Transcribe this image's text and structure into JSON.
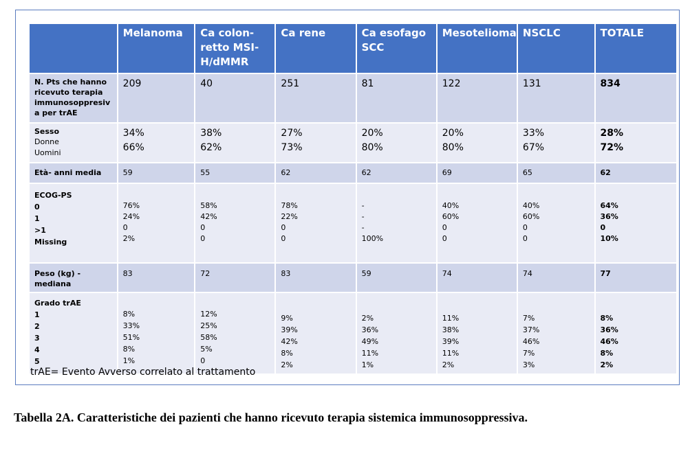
{
  "columns": [
    "",
    "Melanoma",
    "Ca colon-retto  MSI-H/dMMR",
    "Ca rene",
    "Ca esofago SCC",
    "Mesotelioma",
    "NSCLC",
    "TOTALE"
  ],
  "header_lines": {
    "c2": [
      "Ca colon-",
      "retto  MSI-",
      "H/dMMR"
    ],
    "c4": [
      "Ca esofago",
      "SCC"
    ]
  },
  "rows": {
    "npts": {
      "label": [
        "N. Pts che hanno",
        "ricevuto terapia",
        "immunosoppresiv",
        "a per trAE"
      ],
      "values": [
        "209",
        "40",
        "251",
        "81",
        "122",
        "131",
        "834"
      ]
    },
    "sesso": {
      "label": "Sesso",
      "sub": [
        "Donne",
        "Uomini"
      ],
      "values": [
        [
          "34%",
          "66%"
        ],
        [
          "38%",
          "62%"
        ],
        [
          "27%",
          "73%"
        ],
        [
          "20%",
          "80%"
        ],
        [
          "20%",
          "80%"
        ],
        [
          "33%",
          "67%"
        ],
        [
          "28%",
          "72%"
        ]
      ]
    },
    "eta": {
      "label": "Età- anni media",
      "values": [
        "59",
        "55",
        "62",
        "62",
        "69",
        "65",
        "62"
      ]
    },
    "ecog": {
      "label": [
        "ECOG-PS",
        "0",
        "1",
        ">1",
        "Missing"
      ],
      "values": [
        [
          "76%",
          "24%",
          "0",
          "2%"
        ],
        [
          "58%",
          "42%",
          "0",
          "0"
        ],
        [
          "78%",
          "22%",
          "0",
          "0"
        ],
        [
          "-",
          "-",
          "-",
          "100%"
        ],
        [
          "40%",
          "60%",
          "0",
          "0"
        ],
        [
          "40%",
          "60%",
          "0",
          "0"
        ],
        [
          "64%",
          "36%",
          "0",
          "10%"
        ]
      ]
    },
    "peso": {
      "label": "Peso (kg) -mediana",
      "values": [
        "83",
        "72",
        "83",
        "59",
        "74",
        "74",
        "77"
      ]
    },
    "grado": {
      "label": [
        "Grado trAE",
        "1",
        "2",
        "3",
        "4",
        "5"
      ],
      "values": [
        [
          "8%",
          "33%",
          "51%",
          "8%",
          "1%"
        ],
        [
          "12%",
          "25%",
          "58%",
          "5%",
          "0"
        ],
        [
          "9%",
          "39%",
          "42%",
          "8%",
          "2%"
        ],
        [
          "2%",
          "36%",
          "49%",
          "11%",
          "1%"
        ],
        [
          "11%",
          "38%",
          "39%",
          "11%",
          "2%"
        ],
        [
          "7%",
          "37%",
          "46%",
          "7%",
          "3%"
        ],
        [
          "8%",
          "36%",
          "46%",
          "8%",
          "2%"
        ]
      ]
    }
  },
  "footnote": "trAE= Evento Avverso correlato al trattamento",
  "caption": "Tabella 2A. Caratteristiche dei pazienti che hanno ricevuto terapia sistemica immunosoppressiva."
}
